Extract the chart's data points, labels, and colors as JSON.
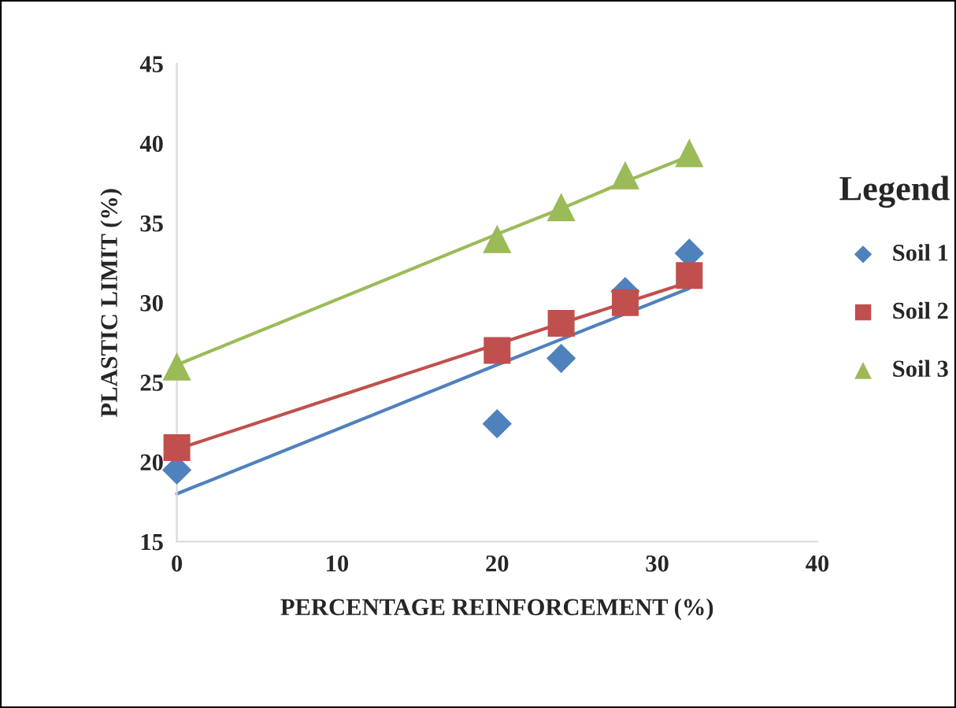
{
  "chart_data": {
    "type": "scatter",
    "xlabel": "PERCENTAGE REINFORCEMENT (%)",
    "ylabel": "PLASTIC LIMIT (%)",
    "legend_title": "Legend",
    "x": [
      0,
      20,
      24,
      28,
      32
    ],
    "series": [
      {
        "name": "Soil 1",
        "color": "#4f81bd",
        "marker": "diamond",
        "values": [
          19.5,
          22.4,
          26.5,
          30.7,
          33.1
        ]
      },
      {
        "name": "Soil 2",
        "color": "#c0504d",
        "marker": "square",
        "values": [
          20.9,
          27.0,
          28.7,
          30.0,
          31.7
        ]
      },
      {
        "name": "Soil 3",
        "color": "#9bbb59",
        "marker": "triangle",
        "values": [
          26.0,
          34.0,
          36.0,
          38.0,
          39.4
        ]
      },
      {
        "type": "line",
        "color": "#4f81bd",
        "values": [
          18.0,
          26.1,
          27.7,
          29.3,
          30.9
        ]
      },
      {
        "type": "line",
        "color": "#c0504d",
        "values": [
          20.8,
          27.4,
          28.7,
          30.0,
          31.3
        ]
      },
      {
        "type": "line",
        "color": "#9bbb59",
        "values": [
          26.1,
          34.3,
          35.9,
          37.6,
          39.2
        ]
      }
    ],
    "xlim": [
      0,
      40
    ],
    "xticks": [
      0,
      10,
      20,
      30,
      40
    ],
    "ylim": [
      15,
      45
    ],
    "yticks": [
      15,
      20,
      25,
      30,
      35,
      40,
      45
    ],
    "grid": false,
    "legend": "right"
  }
}
